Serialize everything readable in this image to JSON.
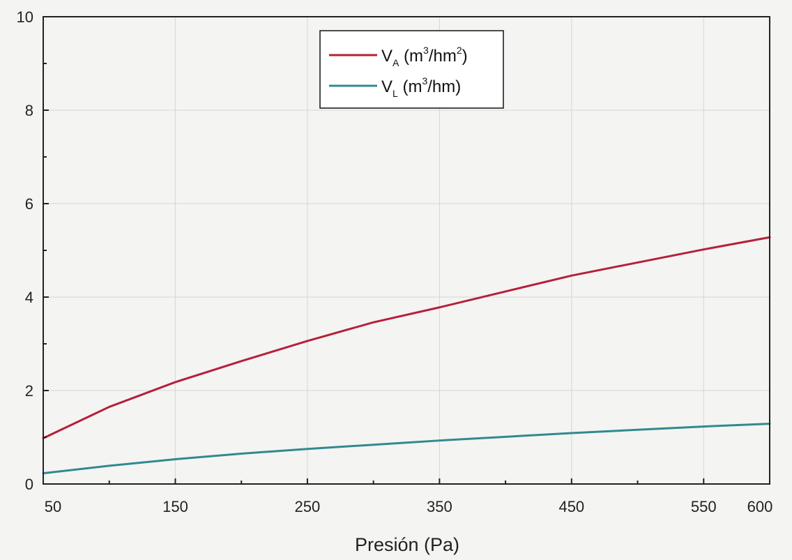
{
  "chart_data": {
    "type": "line",
    "title": "",
    "xlabel": "Presión (Pa)",
    "ylabel": "",
    "xlim": [
      50,
      600
    ],
    "ylim": [
      0,
      10
    ],
    "x_ticks": [
      50,
      150,
      250,
      350,
      450,
      550,
      600
    ],
    "y_ticks": [
      0,
      2,
      4,
      6,
      8,
      10
    ],
    "grid": true,
    "legend_position": "top-center",
    "series": [
      {
        "name": "V_A (m3/hm2)",
        "legend": {
          "main": "V",
          "sub": "A",
          "unit_open": " (m",
          "sup1": "3",
          "unit_mid": "/hm",
          "sup2": "2",
          "unit_close": ")"
        },
        "color": "#b5203a",
        "x": [
          50,
          100,
          150,
          200,
          250,
          300,
          350,
          400,
          450,
          500,
          550,
          600
        ],
        "values": [
          0.98,
          1.65,
          2.18,
          2.63,
          3.06,
          3.46,
          3.78,
          4.12,
          4.46,
          4.74,
          5.02,
          5.28
        ]
      },
      {
        "name": "V_L (m3/hm)",
        "legend": {
          "main": "V",
          "sub": "L",
          "unit_open": " (m",
          "sup1": "3",
          "unit_mid": "/hm)",
          "sup2": "",
          "unit_close": ""
        },
        "color": "#2f8a8f",
        "x": [
          50,
          100,
          150,
          200,
          250,
          300,
          350,
          400,
          450,
          500,
          550,
          600
        ],
        "values": [
          0.23,
          0.39,
          0.53,
          0.65,
          0.75,
          0.84,
          0.93,
          1.01,
          1.09,
          1.16,
          1.23,
          1.29
        ]
      }
    ]
  }
}
